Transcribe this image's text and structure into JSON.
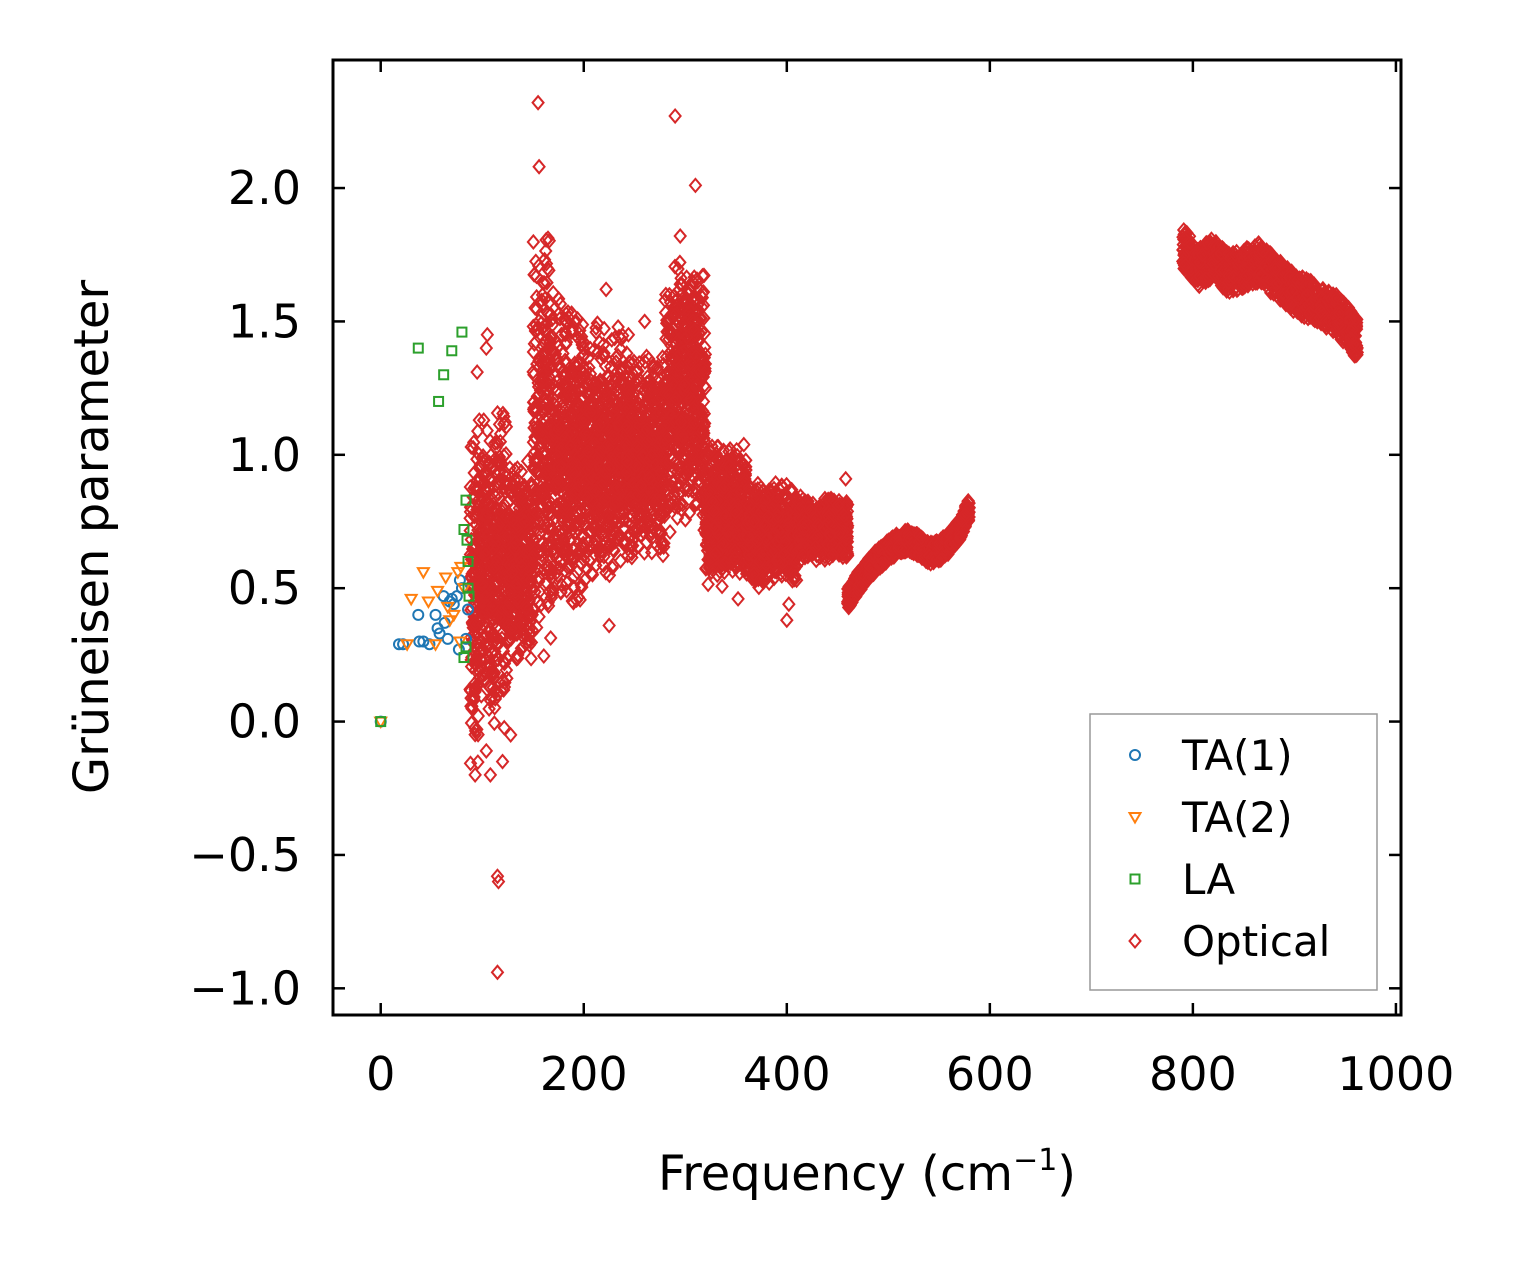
{
  "chart_data": {
    "type": "scatter",
    "title": "",
    "xlabel": "Frequency (cm",
    "xlabel_sup": "−1",
    "xlabel_suffix": ")",
    "ylabel": "Grüneisen parameter",
    "xlim": [
      -47,
      1005
    ],
    "ylim": [
      -1.1,
      2.48
    ],
    "xticks": [
      0,
      200,
      400,
      600,
      800,
      1000
    ],
    "yticks": [
      -1.0,
      -0.5,
      0.0,
      0.5,
      1.0,
      1.5,
      2.0
    ],
    "xtick_labels": [
      "0",
      "200",
      "400",
      "600",
      "800",
      "1000"
    ],
    "ytick_labels": [
      "−1.0",
      "−0.5",
      "0.0",
      "0.5",
      "1.0",
      "1.5",
      "2.0"
    ],
    "grid": false,
    "legend_position": "lower-right",
    "series": [
      {
        "name": "TA(1)",
        "marker": "circle",
        "color": "#1f77b4",
        "points": [
          [
            0,
            0.0
          ],
          [
            18,
            0.29
          ],
          [
            22,
            0.29
          ],
          [
            37,
            0.4
          ],
          [
            38,
            0.3
          ],
          [
            42,
            0.3
          ],
          [
            48,
            0.29
          ],
          [
            54,
            0.4
          ],
          [
            56,
            0.35
          ],
          [
            58,
            0.33
          ],
          [
            62,
            0.47
          ],
          [
            63,
            0.37
          ],
          [
            66,
            0.31
          ],
          [
            68,
            0.45
          ],
          [
            70,
            0.46
          ],
          [
            72,
            0.44
          ],
          [
            75,
            0.47
          ],
          [
            77,
            0.27
          ],
          [
            78,
            0.53
          ],
          [
            80,
            0.5
          ],
          [
            84,
            0.31
          ],
          [
            86,
            0.42
          ]
        ]
      },
      {
        "name": "TA(2)",
        "marker": "triangle-down",
        "color": "#ff7f0e",
        "points": [
          [
            0,
            0.0
          ],
          [
            26,
            0.29
          ],
          [
            30,
            0.46
          ],
          [
            42,
            0.56
          ],
          [
            47,
            0.45
          ],
          [
            54,
            0.29
          ],
          [
            56,
            0.49
          ],
          [
            64,
            0.54
          ],
          [
            66,
            0.43
          ],
          [
            68,
            0.38
          ],
          [
            72,
            0.4
          ],
          [
            76,
            0.56
          ],
          [
            78,
            0.3
          ],
          [
            79,
            0.58
          ],
          [
            82,
            0.5
          ]
        ]
      },
      {
        "name": "LA",
        "marker": "square",
        "color": "#2ca02c",
        "points": [
          [
            0,
            0.0
          ],
          [
            37,
            1.4
          ],
          [
            57,
            1.2
          ],
          [
            62,
            1.3
          ],
          [
            70,
            1.39
          ],
          [
            80,
            1.46
          ],
          [
            82,
            0.72
          ],
          [
            84,
            0.83
          ],
          [
            85,
            0.68
          ],
          [
            86,
            0.6
          ],
          [
            87,
            0.47
          ],
          [
            82,
            0.24
          ],
          [
            84,
            0.28
          ],
          [
            86,
            0.5
          ]
        ]
      },
      {
        "name": "Optical",
        "marker": "diamond",
        "color": "#d62728",
        "outliers": [
          [
            155,
            2.32
          ],
          [
            290,
            2.27
          ],
          [
            310,
            2.01
          ],
          [
            156,
            2.08
          ],
          [
            295,
            1.82
          ],
          [
            105,
            1.45
          ],
          [
            104,
            1.4
          ],
          [
            95,
            1.31
          ],
          [
            115,
            -0.94
          ],
          [
            115,
            -0.58
          ],
          [
            116,
            -0.6
          ],
          [
            93,
            -0.2
          ],
          [
            108,
            -0.2
          ],
          [
            104,
            -0.11
          ],
          [
            120,
            -0.15
          ],
          [
            128,
            -0.05
          ],
          [
            225,
            0.36
          ],
          [
            400,
            0.38
          ],
          [
            352,
            0.46
          ],
          [
            458,
            0.91
          ],
          [
            402,
            0.44
          ],
          [
            135,
            0.25
          ],
          [
            222,
            1.62
          ],
          [
            260,
            1.5
          ],
          [
            244,
            1.45
          ]
        ],
        "bands": [
          {
            "x": [
              88,
              100
            ],
            "y": [
              -0.2,
              1.18
            ]
          },
          {
            "x": [
              100,
              125
            ],
            "y": [
              -0.05,
              1.2
            ]
          },
          {
            "x": [
              125,
              150
            ],
            "y": [
              0.2,
              1.0
            ]
          },
          {
            "x": [
              150,
              170
            ],
            "y": [
              0.2,
              1.9
            ]
          },
          {
            "x": [
              170,
              200
            ],
            "y": [
              0.4,
              1.6
            ]
          },
          {
            "x": [
              200,
              240
            ],
            "y": [
              0.5,
              1.5
            ]
          },
          {
            "x": [
              240,
              280
            ],
            "y": [
              0.6,
              1.4
            ]
          },
          {
            "x": [
              280,
              320
            ],
            "y": [
              0.7,
              1.75
            ]
          },
          {
            "x": [
              320,
              360
            ],
            "y": [
              0.5,
              1.05
            ]
          },
          {
            "x": [
              360,
              410
            ],
            "y": [
              0.5,
              0.9
            ]
          },
          {
            "x": [
              410,
              460
            ],
            "y": [
              0.6,
              0.85
            ]
          }
        ],
        "curves": [
          {
            "x": [
              460,
              470,
              480,
              490,
              500,
              510,
              520,
              530,
              540,
              550,
              560,
              570,
              580
            ],
            "y": [
              0.46,
              0.52,
              0.57,
              0.61,
              0.64,
              0.67,
              0.68,
              0.66,
              0.63,
              0.64,
              0.67,
              0.72,
              0.8
            ],
            "spread": 0.08
          },
          {
            "x": [
              790,
              805,
              820,
              835,
              850,
              865,
              880,
              895,
              910,
              925,
              940,
              955,
              962
            ],
            "y": [
              1.78,
              1.7,
              1.74,
              1.68,
              1.7,
              1.72,
              1.67,
              1.62,
              1.59,
              1.56,
              1.53,
              1.47,
              1.43
            ],
            "spread": 0.15
          }
        ]
      }
    ]
  }
}
